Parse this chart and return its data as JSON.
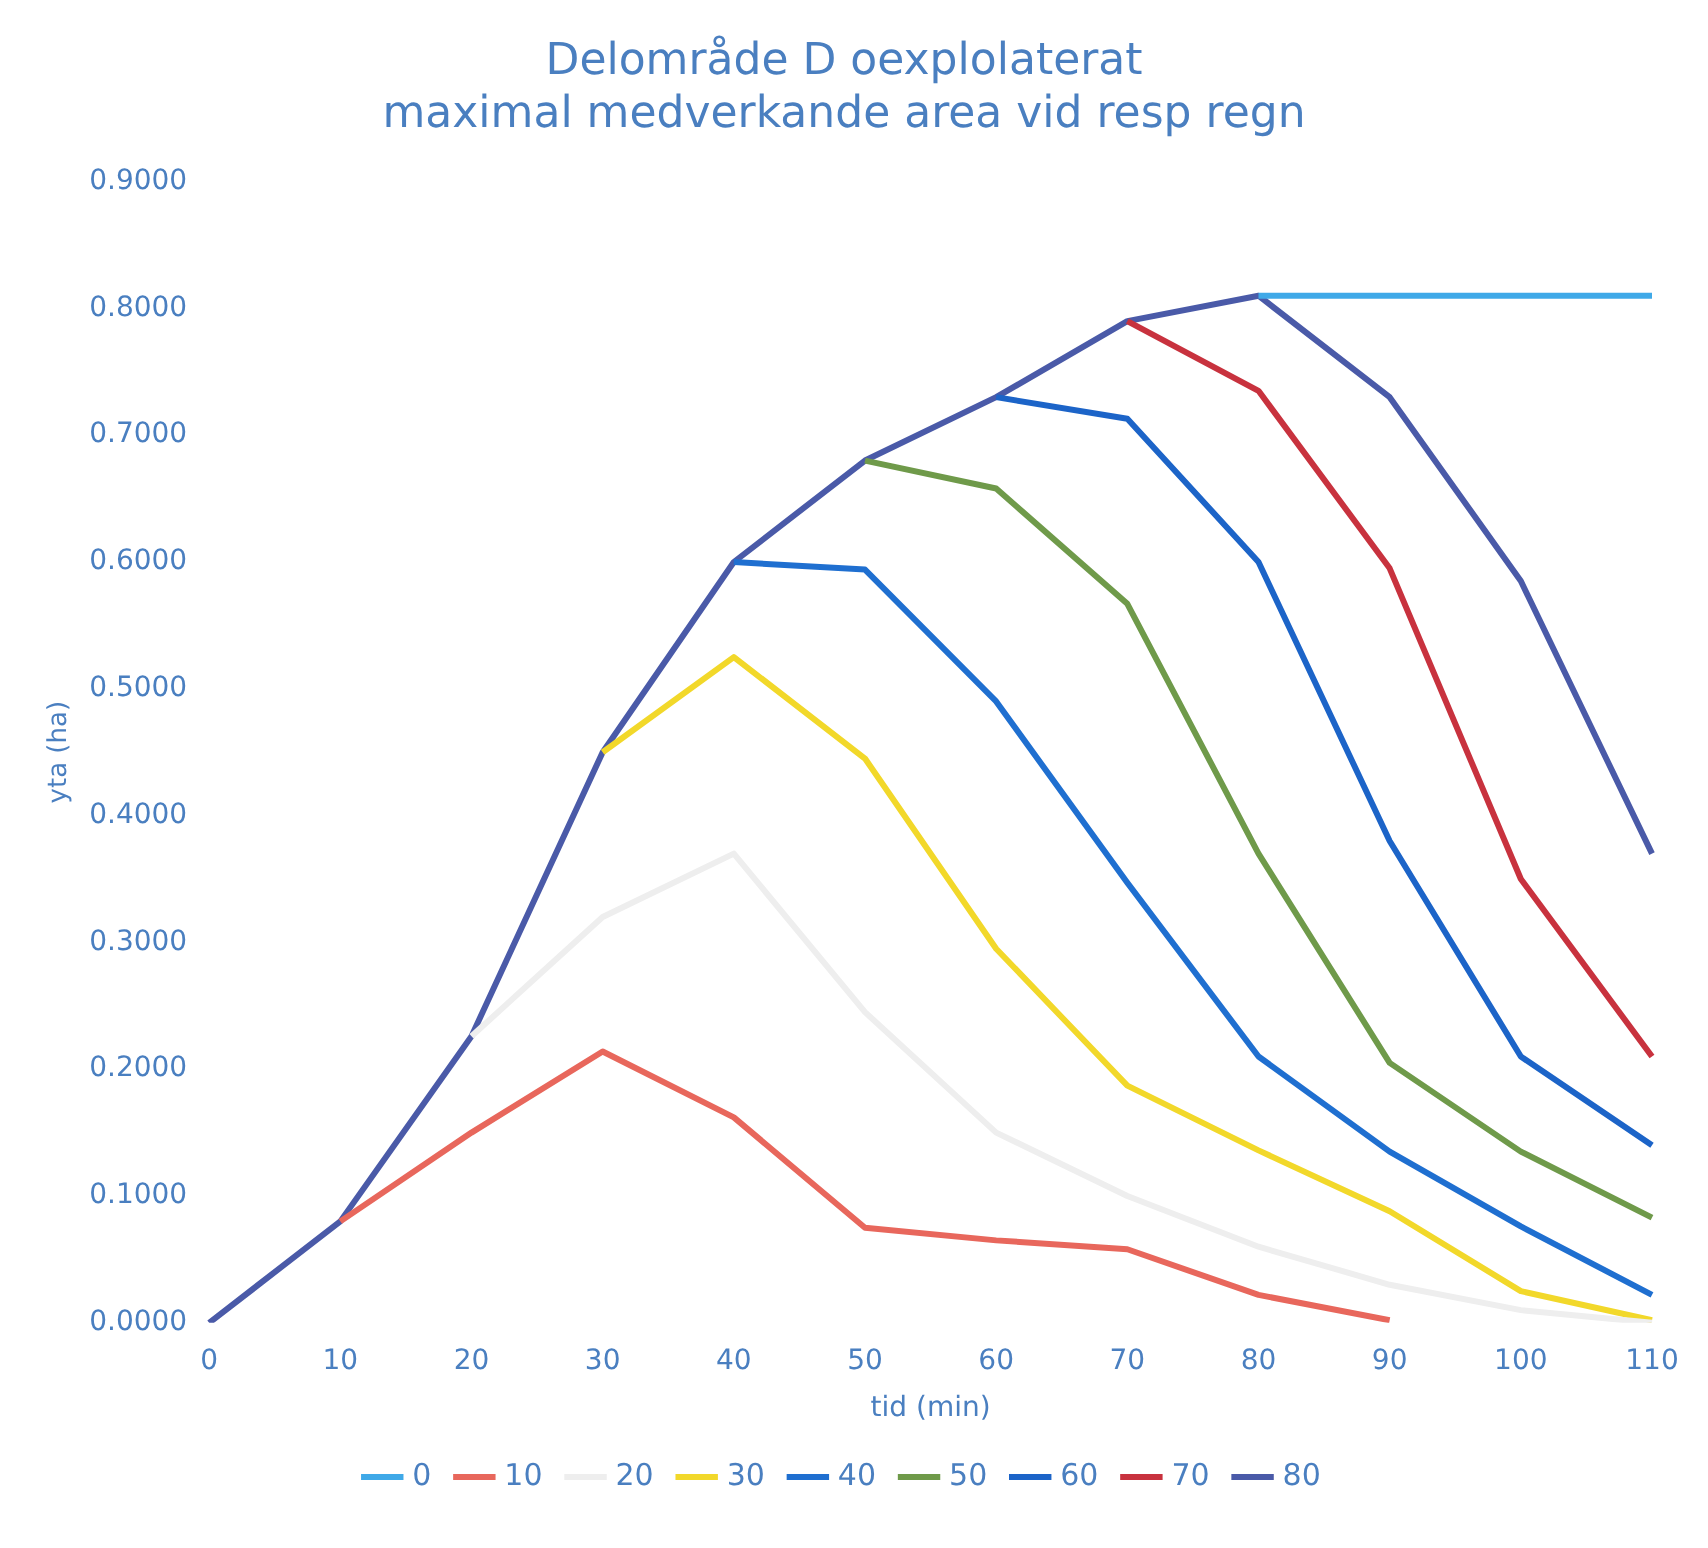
{
  "chart_data": {
    "type": "line",
    "title": "Delområde D oexplolaterat\nmaximal medverkande area vid resp regn",
    "xlabel": "tid (min)",
    "ylabel": "yta (ha)",
    "categories": [
      "0",
      "10",
      "20",
      "30",
      "40",
      "50",
      "60",
      "70",
      "80",
      "90",
      "100",
      "110"
    ],
    "ylim": [
      0,
      0.9
    ],
    "yticks": [
      {
        "value": 0,
        "label": "0.0000"
      },
      {
        "value": 0.1,
        "label": "0.1000"
      },
      {
        "value": 0.2,
        "label": "0.2000"
      },
      {
        "value": 0.3,
        "label": "0.3000"
      },
      {
        "value": 0.4,
        "label": "0.4000"
      },
      {
        "value": 0.5,
        "label": "0.5000"
      },
      {
        "value": 0.6,
        "label": "0.6000"
      },
      {
        "value": 0.7,
        "label": "0.7000"
      },
      {
        "value": 0.8,
        "label": "0.8000"
      },
      {
        "value": 0.9,
        "label": "0.9000"
      }
    ],
    "grid": false,
    "legend": "bottom",
    "marker": "none",
    "line_style": "solid",
    "series": [
      {
        "name": "0",
        "color": "#3fa9e8",
        "values": [
          null,
          null,
          null,
          null,
          null,
          null,
          null,
          null,
          0.81,
          0.81,
          0.81,
          0.81
        ]
      },
      {
        "name": "10",
        "color": "#e8675c",
        "values": [
          null,
          0.08,
          0.15,
          0.214,
          0.162,
          0.075,
          0.065,
          0.058,
          0.022,
          0.002,
          null,
          null
        ]
      },
      {
        "name": "20",
        "color": "#eeeeee",
        "values": [
          null,
          null,
          0.226,
          0.32,
          0.37,
          0.245,
          0.15,
          0.1,
          0.06,
          0.03,
          0.01,
          0
        ]
      },
      {
        "name": "30",
        "color": "#f2d82a",
        "values": [
          null,
          null,
          null,
          0.45,
          0.525,
          0.445,
          0.295,
          0.187,
          0.136,
          0.088,
          0.025,
          0.002
        ]
      },
      {
        "name": "40",
        "color": "#1f6fd0",
        "values": [
          null,
          null,
          null,
          null,
          0.6,
          0.594,
          0.49,
          0.347,
          0.21,
          0.135,
          0.076,
          0.022
        ]
      },
      {
        "name": "50",
        "color": "#6f9a4a",
        "values": [
          null,
          null,
          null,
          null,
          null,
          0.68,
          0.658,
          0.567,
          0.37,
          0.205,
          0.135,
          0.083
        ]
      },
      {
        "name": "60",
        "color": "#1c64c8",
        "values": [
          null,
          null,
          null,
          null,
          null,
          null,
          0.73,
          0.713,
          0.6,
          0.38,
          0.21,
          0.14
        ]
      },
      {
        "name": "70",
        "color": "#c8323e",
        "values": [
          null,
          null,
          null,
          null,
          null,
          null,
          null,
          0.79,
          0.735,
          0.595,
          0.35,
          0.21
        ]
      },
      {
        "name": "80",
        "color": "#4a5aa8",
        "values": [
          0,
          0.08,
          0.226,
          0.45,
          0.6,
          0.68,
          0.73,
          0.79,
          0.81,
          0.73,
          0.585,
          0.37
        ]
      }
    ]
  }
}
